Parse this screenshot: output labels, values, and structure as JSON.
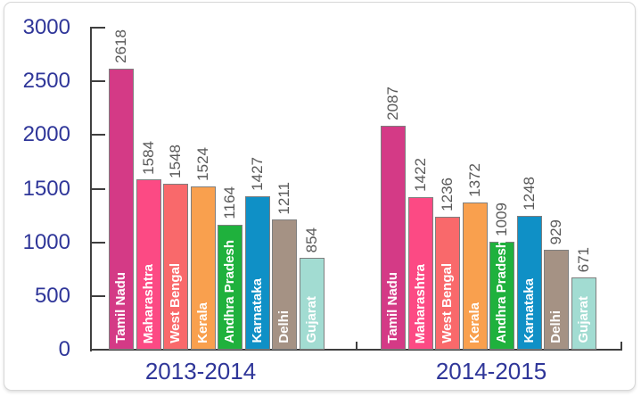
{
  "chart_data": {
    "type": "bar",
    "title": "",
    "categories": [
      "Tamil Nadu",
      "Maharashtra",
      "West Bengal",
      "Kerala",
      "Andhra Pradesh",
      "Karnataka",
      "Delhi",
      "Gujarat"
    ],
    "series": [
      {
        "name": "2013-2014",
        "values": [
          2618,
          1584,
          1548,
          1524,
          1164,
          1427,
          1211,
          854
        ]
      },
      {
        "name": "2014-2015",
        "values": [
          2087,
          1422,
          1236,
          1372,
          1009,
          1248,
          929,
          671
        ]
      }
    ],
    "bar_colors": [
      "#d43a86",
      "#fc4a84",
      "#f9696b",
      "#f9a04e",
      "#1fb13d",
      "#0f90c6",
      "#a59284",
      "#a2dcd2"
    ],
    "y_ticks": [
      3000,
      2500,
      2000,
      1500,
      1000,
      500,
      0
    ],
    "ylim": [
      0,
      3000
    ],
    "grid": false,
    "legend_position": "none",
    "value_label_style": "rotated-90-above-bar",
    "category_label_style": "rotated-90-inside-bar-white-bold",
    "colors": {
      "axis_text": "#2f3699",
      "value_text": "#595959",
      "axis_line": "#3f3f3f",
      "bar_outline": "#7f7f7f",
      "card_border": "#d7d7d7",
      "background": "#ffffff"
    }
  }
}
